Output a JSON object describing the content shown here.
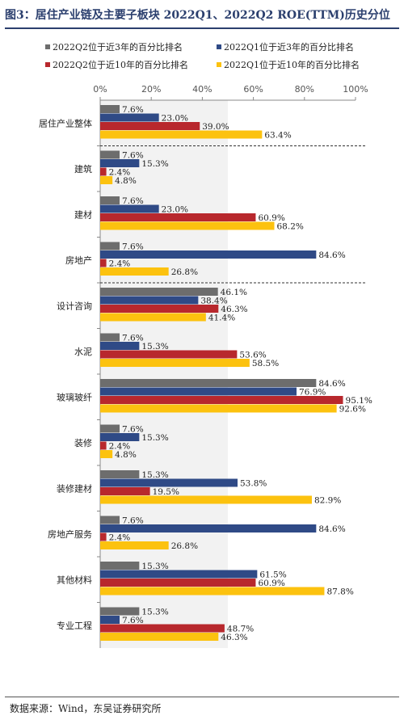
{
  "title": "图3：居住产业链及主要子板块 2022Q1、2022Q2 ROE(TTM)历史分位",
  "source": "数据来源：Wind，东吴证券研究所",
  "chart_data": {
    "type": "bar",
    "orientation": "horizontal",
    "x_ticks": [
      "0%",
      "20%",
      "40%",
      "60%",
      "80%",
      "100%"
    ],
    "xlim": [
      0,
      100
    ],
    "categories": [
      "居住产业整体",
      "建筑",
      "建材",
      "房地产",
      "设计咨询",
      "水泥",
      "玻璃玻纤",
      "装修",
      "装修建材",
      "房地产服务",
      "其他材料",
      "专业工程"
    ],
    "series": [
      {
        "name": "2022Q2位于近3年的百分比排名",
        "color": "#6d6d6d",
        "values": [
          7.6,
          7.6,
          7.6,
          7.6,
          46.1,
          7.6,
          84.6,
          7.6,
          15.3,
          7.6,
          15.3,
          15.3
        ]
      },
      {
        "name": "2022Q1位于近3年的百分比排名",
        "color": "#2f4a86",
        "values": [
          23.0,
          15.3,
          23.0,
          84.6,
          38.4,
          15.3,
          76.9,
          15.3,
          53.8,
          84.6,
          61.5,
          7.6
        ]
      },
      {
        "name": "2022Q2位于近10年的百分比排名",
        "color": "#b8282d",
        "values": [
          39.0,
          2.4,
          60.9,
          2.4,
          46.3,
          53.6,
          95.1,
          2.4,
          19.5,
          2.4,
          60.9,
          48.7
        ]
      },
      {
        "name": "2022Q1位于近10年的百分比排名",
        "color": "#fcc20f",
        "values": [
          63.4,
          4.8,
          68.2,
          26.8,
          41.4,
          58.5,
          92.6,
          4.8,
          82.9,
          26.8,
          87.8,
          46.3
        ]
      }
    ],
    "labels": [
      [
        "7.6%",
        "23.0%",
        "39.0%",
        "63.4%"
      ],
      [
        "7.6%",
        "15.3%",
        "2.4%",
        "4.8%"
      ],
      [
        "7.6%",
        "23.0%",
        "60.9%",
        "68.2%"
      ],
      [
        "7.6%",
        "84.6%",
        "2.4%",
        "26.8%"
      ],
      [
        "46.1%",
        "38.4%",
        "46.3%",
        "41.4%"
      ],
      [
        "7.6%",
        "15.3%",
        "53.6%",
        "58.5%"
      ],
      [
        "84.6%",
        "76.9%",
        "95.1%",
        "92.6%"
      ],
      [
        "7.6%",
        "15.3%",
        "2.4%",
        "4.8%"
      ],
      [
        "15.3%",
        "53.8%",
        "19.5%",
        "82.9%"
      ],
      [
        "7.6%",
        "84.6%",
        "2.4%",
        "26.8%"
      ],
      [
        "15.3%",
        "61.5%",
        "60.9%",
        "87.8%"
      ],
      [
        "15.3%",
        "7.6%",
        "48.7%",
        "46.3%"
      ]
    ],
    "legend_position": "top"
  }
}
